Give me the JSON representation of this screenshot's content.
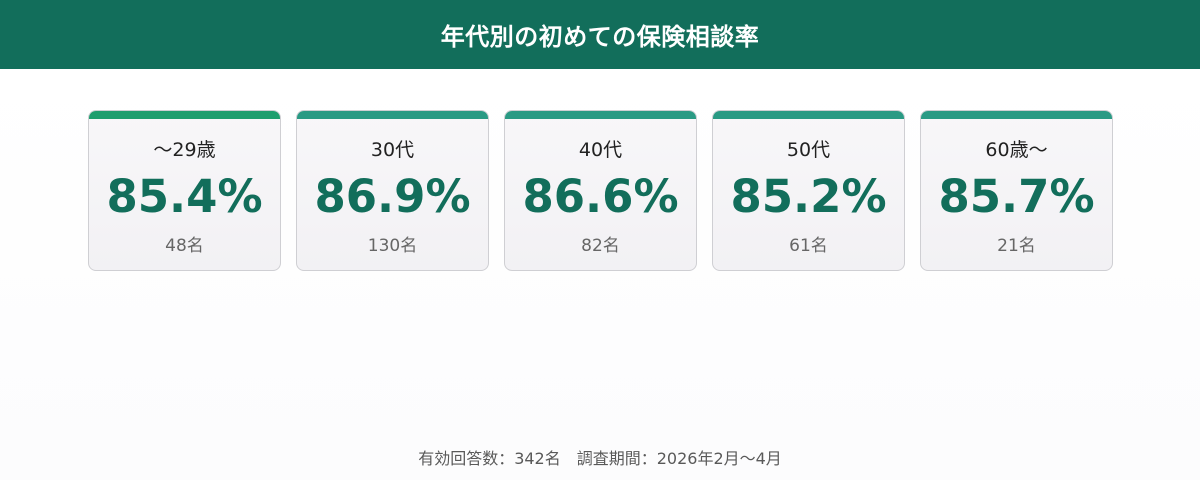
{
  "header": {
    "title": "年代別の初めての保険相談率"
  },
  "colors": {
    "header_bg": "#126e5b",
    "value_text": "#126e5b",
    "accent_first": "#1f9e6e",
    "accent_rest": "#2a9a84"
  },
  "chart_data": {
    "type": "table",
    "title": "年代別の初めての保険相談率",
    "categories": [
      "〜29歳",
      "30代",
      "40代",
      "50代",
      "60歳〜"
    ],
    "values": [
      85.4,
      86.9,
      86.6,
      85.2,
      85.7
    ],
    "value_labels": [
      "85.4%",
      "86.9%",
      "86.6%",
      "85.2%",
      "85.7%"
    ],
    "counts": [
      48,
      130,
      82,
      61,
      21
    ],
    "count_labels": [
      "48名",
      "130名",
      "82名",
      "61名",
      "21名"
    ],
    "unit": "%"
  },
  "footer": {
    "text": "有効回答数：342名　調査期間：2026年2月〜4月"
  }
}
